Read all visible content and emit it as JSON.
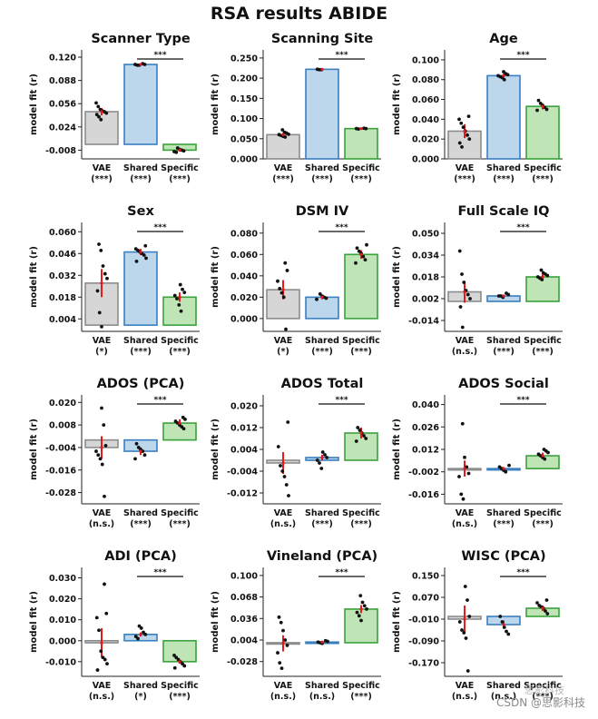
{
  "figure": {
    "title": "RSA results ABIDE",
    "watermark": "CSDN @思影科技",
    "watermark_logo": "思影科技"
  },
  "colors": {
    "vae_fill": "#d6d6d6",
    "vae_edge": "#8c8c8c",
    "shared_fill": "#bcd6ec",
    "shared_edge": "#3a7fc0",
    "specific_fill": "#bfe5b7",
    "specific_edge": "#3aa23a",
    "errbar": "#e8191b",
    "dot": "#111111",
    "sigline": "#111111"
  },
  "chart_data": [
    {
      "type": "bar",
      "title": "Scanner Type",
      "ylabel": "model fit (r)",
      "categories": [
        "VAE",
        "Shared",
        "Specific"
      ],
      "sig_labels": [
        "(***)",
        "(***)",
        "(***)"
      ],
      "ylim": [
        -0.02,
        0.13
      ],
      "ticks": [
        -0.008,
        0.024,
        0.056,
        0.088,
        0.12
      ],
      "tick_labels": [
        "-0.008",
        "0.024",
        "0.056",
        "0.088",
        "0.120"
      ],
      "values": [
        0.045,
        0.11,
        -0.008
      ],
      "err": [
        0.005,
        0.001,
        0.002
      ],
      "points": [
        [
          0.057,
          0.052,
          0.048,
          0.046,
          0.045,
          0.043,
          0.041,
          0.038,
          0.034
        ],
        [
          0.111,
          0.11,
          0.11,
          0.109,
          0.109
        ],
        [
          -0.005,
          -0.007,
          -0.008,
          -0.009,
          -0.01,
          -0.011
        ]
      ],
      "bracket": "***"
    },
    {
      "type": "bar",
      "title": "Scanning Site",
      "ylabel": "model fit (r)",
      "categories": [
        "VAE",
        "Shared",
        "Specific"
      ],
      "sig_labels": [
        "(***)",
        "(***)",
        "(***)"
      ],
      "ylim": [
        0,
        0.27
      ],
      "ticks": [
        0.0,
        0.05,
        0.1,
        0.15,
        0.2,
        0.25
      ],
      "tick_labels": [
        "0.000",
        "0.050",
        "0.100",
        "0.150",
        "0.200",
        "0.250"
      ],
      "values": [
        0.06,
        0.222,
        0.075
      ],
      "err": [
        0.004,
        0.001,
        0.001
      ],
      "points": [
        [
          0.072,
          0.066,
          0.064,
          0.061,
          0.06,
          0.058,
          0.056,
          0.054
        ],
        [
          0.222,
          0.221,
          0.221
        ],
        [
          0.076,
          0.075,
          0.075,
          0.074
        ]
      ],
      "bracket": "***"
    },
    {
      "type": "bar",
      "title": "Age",
      "ylabel": "model fit (r)",
      "categories": [
        "VAE",
        "Shared",
        "Specific"
      ],
      "sig_labels": [
        "(***)",
        "(***)",
        "(***)"
      ],
      "ylim": [
        0,
        0.11
      ],
      "ticks": [
        0.0,
        0.02,
        0.04,
        0.06,
        0.08,
        0.1
      ],
      "tick_labels": [
        "0.000",
        "0.020",
        "0.040",
        "0.060",
        "0.080",
        "0.100"
      ],
      "values": [
        0.028,
        0.084,
        0.053
      ],
      "err": [
        0.007,
        0.002,
        0.003
      ],
      "points": [
        [
          0.043,
          0.04,
          0.036,
          0.032,
          0.028,
          0.024,
          0.02,
          0.016,
          0.012
        ],
        [
          0.088,
          0.086,
          0.085,
          0.084,
          0.083,
          0.082,
          0.08
        ],
        [
          0.059,
          0.056,
          0.054,
          0.052,
          0.05,
          0.049
        ]
      ],
      "bracket": "***"
    },
    {
      "type": "bar",
      "title": "Sex",
      "ylabel": "model fit (r)",
      "categories": [
        "VAE",
        "Shared",
        "Specific"
      ],
      "sig_labels": [
        "(*)",
        "(***)",
        "(***)"
      ],
      "ylim": [
        -0.004,
        0.066
      ],
      "ticks": [
        0.004,
        0.018,
        0.032,
        0.046,
        0.06
      ],
      "tick_labels": [
        "0.004",
        "0.018",
        "0.032",
        "0.046",
        "0.060"
      ],
      "values": [
        0.027,
        0.047,
        0.018
      ],
      "err": [
        0.009,
        0.002,
        0.003
      ],
      "points": [
        [
          0.052,
          0.048,
          0.038,
          0.033,
          0.03,
          0.022,
          0.008,
          -0.001
        ],
        [
          0.051,
          0.049,
          0.048,
          0.047,
          0.046,
          0.045,
          0.043,
          0.041
        ],
        [
          0.026,
          0.023,
          0.021,
          0.019,
          0.017,
          0.013,
          0.009
        ]
      ],
      "bracket": "***"
    },
    {
      "type": "bar",
      "title": "DSM IV",
      "ylabel": "model fit (r)",
      "categories": [
        "VAE",
        "Shared",
        "Specific"
      ],
      "sig_labels": [
        "(*)",
        "(***)",
        "(***)"
      ],
      "ylim": [
        -0.012,
        0.09
      ],
      "ticks": [
        0.0,
        0.02,
        0.04,
        0.06,
        0.08
      ],
      "tick_labels": [
        "0.000",
        "0.020",
        "0.040",
        "0.060",
        "0.080"
      ],
      "values": [
        0.027,
        0.02,
        0.06
      ],
      "err": [
        0.009,
        0.002,
        0.004
      ],
      "points": [
        [
          0.052,
          0.045,
          0.035,
          0.028,
          0.024,
          0.02,
          -0.01
        ],
        [
          0.023,
          0.021,
          0.02,
          0.019,
          0.018
        ],
        [
          0.069,
          0.066,
          0.063,
          0.061,
          0.058,
          0.055,
          0.052
        ]
      ],
      "bracket": "***"
    },
    {
      "type": "bar",
      "title": "Full Scale IQ",
      "ylabel": "model fit (r)",
      "categories": [
        "VAE",
        "Shared",
        "Specific"
      ],
      "sig_labels": [
        "(n.s.)",
        "(***)",
        "(***)"
      ],
      "ylim": [
        -0.022,
        0.058
      ],
      "ticks": [
        -0.014,
        0.002,
        0.018,
        0.034,
        0.05
      ],
      "tick_labels": [
        "-0.014",
        "0.002",
        "0.018",
        "0.034",
        "0.050"
      ],
      "values": [
        0.007,
        0.004,
        0.018
      ],
      "err": [
        0.008,
        0.001,
        0.002
      ],
      "points": [
        [
          0.037,
          0.02,
          0.014,
          0.008,
          0.005,
          0.002,
          -0.004,
          -0.019
        ],
        [
          0.006,
          0.005,
          0.004,
          0.004,
          0.003
        ],
        [
          0.023,
          0.021,
          0.02,
          0.019,
          0.018,
          0.017,
          0.016
        ]
      ],
      "bracket": "***"
    },
    {
      "type": "bar",
      "title": "ADOS (PCA)",
      "ylabel": "model fit (r)",
      "categories": [
        "VAE",
        "Shared",
        "Specific"
      ],
      "sig_labels": [
        "(n.s.)",
        "(***)",
        "(***)"
      ],
      "ylim": [
        -0.034,
        0.024
      ],
      "ticks": [
        -0.028,
        -0.016,
        -0.004,
        0.008,
        0.02
      ],
      "tick_labels": [
        "-0.028",
        "-0.016",
        "-0.004",
        "0.008",
        "0.020"
      ],
      "values": [
        -0.004,
        -0.006,
        0.009
      ],
      "err": [
        0.006,
        0.002,
        0.002
      ],
      "points": [
        [
          0.017,
          0.008,
          -0.003,
          -0.006,
          -0.008,
          -0.01,
          -0.013,
          -0.03
        ],
        [
          -0.002,
          -0.004,
          -0.005,
          -0.006,
          -0.008,
          -0.01
        ],
        [
          0.012,
          0.011,
          0.01,
          0.009,
          0.008,
          0.007,
          0.006
        ]
      ],
      "bracket": "***"
    },
    {
      "type": "bar",
      "title": "ADOS Total",
      "ylabel": "model fit (r)",
      "categories": [
        "VAE",
        "Shared",
        "Specific"
      ],
      "sig_labels": [
        "(n.s.)",
        "(***)",
        "(***)"
      ],
      "ylim": [
        -0.016,
        0.024
      ],
      "ticks": [
        -0.012,
        -0.004,
        0.004,
        0.012,
        0.02
      ],
      "tick_labels": [
        "-0.012",
        "-0.004",
        "0.004",
        "0.012",
        "0.020"
      ],
      "values": [
        -0.001,
        0.001,
        0.01
      ],
      "err": [
        0.004,
        0.001,
        0.002
      ],
      "points": [
        [
          0.014,
          0.005,
          -0.002,
          -0.004,
          -0.006,
          -0.009,
          -0.013
        ],
        [
          0.003,
          0.002,
          0.001,
          0.0,
          -0.001,
          -0.003
        ],
        [
          0.012,
          0.011,
          0.01,
          0.009,
          0.008,
          0.007
        ]
      ],
      "bracket": "***"
    },
    {
      "type": "bar",
      "title": "ADOS Social",
      "ylabel": "model fit (r)",
      "categories": [
        "VAE",
        "Shared",
        "Specific"
      ],
      "sig_labels": [
        "(n.s.)",
        "(***)",
        "(***)"
      ],
      "ylim": [
        -0.022,
        0.046
      ],
      "ticks": [
        -0.016,
        -0.002,
        0.012,
        0.026,
        0.04
      ],
      "tick_labels": [
        "-0.016",
        "-0.002",
        "0.012",
        "0.026",
        "0.040"
      ],
      "values": [
        0.0,
        0.0,
        0.008
      ],
      "err": [
        0.005,
        0.001,
        0.002
      ],
      "points": [
        [
          0.028,
          0.007,
          0.001,
          -0.003,
          -0.005,
          -0.016,
          -0.019
        ],
        [
          0.002,
          0.001,
          0.0,
          -0.001,
          -0.002
        ],
        [
          0.012,
          0.011,
          0.01,
          0.009,
          0.008,
          0.007,
          0.006
        ]
      ],
      "bracket": "***"
    },
    {
      "type": "bar",
      "title": "ADI (PCA)",
      "ylabel": "model fit (r)",
      "categories": [
        "VAE",
        "Shared",
        "Specific"
      ],
      "sig_labels": [
        "(n.s.)",
        "(*)",
        "(***)"
      ],
      "ylim": [
        -0.017,
        0.035
      ],
      "ticks": [
        -0.01,
        0.0,
        0.01,
        0.02,
        0.03
      ],
      "tick_labels": [
        "-0.010",
        "0.000",
        "0.010",
        "0.020",
        "0.030"
      ],
      "values": [
        -0.001,
        0.003,
        -0.01
      ],
      "err": [
        0.007,
        0.001,
        0.001
      ],
      "points": [
        [
          0.027,
          0.013,
          0.011,
          0.005,
          -0.005,
          -0.008,
          -0.009,
          -0.011,
          -0.014
        ],
        [
          0.007,
          0.006,
          0.004,
          0.003,
          0.002,
          0.001
        ],
        [
          -0.007,
          -0.008,
          -0.009,
          -0.01,
          -0.011,
          -0.012,
          -0.013
        ]
      ],
      "bracket": "***"
    },
    {
      "type": "bar",
      "title": "Vineland (PCA)",
      "ylabel": "model fit (r)",
      "categories": [
        "VAE",
        "Shared",
        "Specific"
      ],
      "sig_labels": [
        "(n.s.)",
        "(n.s.)",
        "(***)"
      ],
      "ylim": [
        -0.05,
        0.112
      ],
      "ticks": [
        -0.028,
        0.004,
        0.036,
        0.068,
        0.1
      ],
      "tick_labels": [
        "-0.028",
        "0.004",
        "0.036",
        "0.068",
        "0.100"
      ],
      "values": [
        -0.001,
        0.001,
        0.05
      ],
      "err": [
        0.012,
        0.001,
        0.006
      ],
      "points": [
        [
          0.038,
          0.03,
          0.018,
          0.004,
          -0.004,
          -0.015,
          -0.03,
          -0.038
        ],
        [
          0.003,
          0.002,
          0.001,
          0.0,
          -0.001
        ],
        [
          0.07,
          0.06,
          0.055,
          0.05,
          0.045,
          0.04,
          0.033
        ]
      ],
      "bracket": "***"
    },
    {
      "type": "bar",
      "title": "WISC (PCA)",
      "ylabel": "model fit (r)",
      "categories": [
        "VAE",
        "Shared",
        "Specific"
      ],
      "sig_labels": [
        "(n.s.)",
        "(n.s.)",
        "(***)"
      ],
      "ylim": [
        -0.22,
        0.18
      ],
      "ticks": [
        -0.17,
        -0.09,
        -0.01,
        0.07,
        0.15
      ],
      "tick_labels": [
        "-0.170",
        "-0.090",
        "-0.010",
        "0.070",
        "0.150"
      ],
      "values": [
        -0.01,
        -0.03,
        0.03
      ],
      "err": [
        0.05,
        0.015,
        0.01
      ],
      "points": [
        [
          0.11,
          0.06,
          0.0,
          -0.02,
          -0.05,
          -0.06,
          -0.08,
          -0.2
        ],
        [
          0.0,
          -0.02,
          -0.04,
          -0.055,
          -0.065
        ],
        [
          0.06,
          0.05,
          0.04,
          0.035,
          0.03,
          0.02,
          0.01
        ]
      ],
      "bracket": "***"
    }
  ]
}
